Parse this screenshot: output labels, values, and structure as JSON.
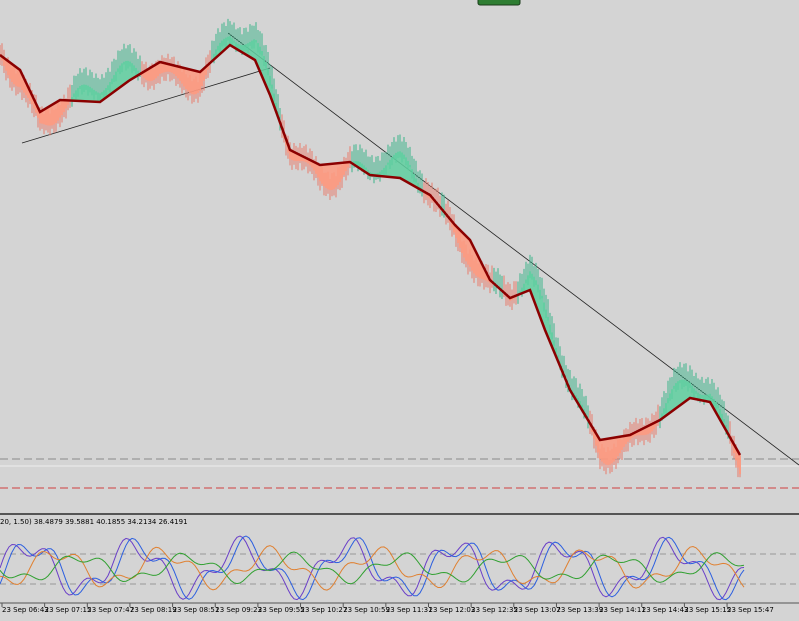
{
  "indicator": {
    "header": "20, 1.50) 38.4879 39.5881 40.1855 34.2134 26.4191"
  },
  "time_axis": {
    "labels": [
      "23 Sep 06:43",
      "23 Sep 07:15",
      "23 Sep 07:47",
      "23 Sep 08:19",
      "23 Sep 08:51",
      "23 Sep 09:23",
      "23 Sep 09:55",
      "23 Sep 10:27",
      "23 Sep 10:59",
      "23 Sep 11:31",
      "23 Sep 12:03",
      "23 Sep 12:35",
      "23 Sep 13:07",
      "23 Sep 13:39",
      "23 Sep 14:11",
      "23 Sep 14:43",
      "23 Sep 15:15",
      "23 Sep 15:47"
    ]
  }
}
